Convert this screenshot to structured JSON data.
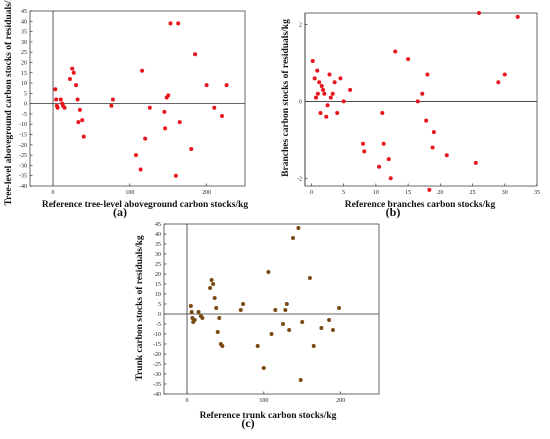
{
  "chart_data": [
    {
      "type": "scatter",
      "panel_label": "(a)",
      "xlabel": "Reference tree-level aboveground carbon stocks/kg",
      "ylabel": "Tree-level aboveground carbon stocks of residuals/kg",
      "xlim": [
        -30,
        250
      ],
      "ylim": [
        -40,
        45
      ],
      "xticks": [
        0,
        100,
        200
      ],
      "yticks": [
        45,
        40,
        35,
        30,
        25,
        20,
        15,
        10,
        5,
        0,
        -5,
        -10,
        -15,
        -20,
        -25,
        -30,
        -35,
        -40
      ],
      "point_color": "#e8141c",
      "points": [
        [
          3,
          7
        ],
        [
          4,
          2
        ],
        [
          5,
          -1
        ],
        [
          6,
          -2
        ],
        [
          10,
          2
        ],
        [
          12,
          0
        ],
        [
          13,
          -1
        ],
        [
          15,
          -2
        ],
        [
          22,
          12
        ],
        [
          25,
          17
        ],
        [
          27,
          15
        ],
        [
          30,
          9
        ],
        [
          32,
          2
        ],
        [
          33,
          -9
        ],
        [
          35,
          -3
        ],
        [
          38,
          -8
        ],
        [
          40,
          -16
        ],
        [
          76,
          -1
        ],
        [
          78,
          2
        ],
        [
          108,
          -25
        ],
        [
          114,
          -32
        ],
        [
          116,
          16
        ],
        [
          120,
          -17
        ],
        [
          126,
          -2
        ],
        [
          145,
          -4
        ],
        [
          146,
          -12
        ],
        [
          148,
          3
        ],
        [
          150,
          4
        ],
        [
          153,
          39
        ],
        [
          160,
          -35
        ],
        [
          163,
          39
        ],
        [
          165,
          -9
        ],
        [
          180,
          -22
        ],
        [
          185,
          24
        ],
        [
          200,
          9
        ],
        [
          210,
          -2
        ],
        [
          220,
          -6
        ],
        [
          226,
          9
        ]
      ]
    },
    {
      "type": "scatter",
      "panel_label": "(b)",
      "xlabel": "Reference branches carbon stocks/kg",
      "ylabel": "Branches carbon stocks of residuals/kg",
      "xlim": [
        -1,
        35
      ],
      "ylim": [
        -2.2,
        2.3
      ],
      "xticks": [
        0,
        5,
        10,
        15,
        20,
        25,
        30,
        35
      ],
      "yticks": [
        2,
        0,
        -2
      ],
      "ytick_labels": [
        "2",
        "0",
        "-2"
      ],
      "point_color": "#e8141c",
      "points": [
        [
          0.2,
          1.05
        ],
        [
          0.5,
          0.6
        ],
        [
          0.7,
          0.1
        ],
        [
          0.9,
          0.8
        ],
        [
          1.0,
          0.2
        ],
        [
          1.2,
          0.5
        ],
        [
          1.4,
          -0.3
        ],
        [
          1.6,
          0.4
        ],
        [
          1.8,
          0.3
        ],
        [
          2.0,
          0.2
        ],
        [
          2.3,
          -0.4
        ],
        [
          2.5,
          -0.1
        ],
        [
          2.8,
          0.7
        ],
        [
          3.0,
          0.1
        ],
        [
          3.3,
          0.2
        ],
        [
          3.6,
          0.5
        ],
        [
          4.0,
          -0.3
        ],
        [
          4.5,
          0.6
        ],
        [
          5.0,
          0.0
        ],
        [
          6.0,
          0.3
        ],
        [
          8.0,
          -1.1
        ],
        [
          8.2,
          -1.3
        ],
        [
          10.5,
          -1.7
        ],
        [
          11.0,
          -0.3
        ],
        [
          11.2,
          -1.1
        ],
        [
          12.0,
          -1.5
        ],
        [
          12.3,
          -2.0
        ],
        [
          13.0,
          1.3
        ],
        [
          15.0,
          1.1
        ],
        [
          16.5,
          0.0
        ],
        [
          17.2,
          0.2
        ],
        [
          17.8,
          -0.5
        ],
        [
          18.0,
          0.7
        ],
        [
          18.3,
          -2.3
        ],
        [
          18.8,
          -1.2
        ],
        [
          19.0,
          -0.8
        ],
        [
          21.0,
          -1.4
        ],
        [
          25.5,
          -1.6
        ],
        [
          26.0,
          2.3
        ],
        [
          29.0,
          0.5
        ],
        [
          30.0,
          0.7
        ],
        [
          32.0,
          2.2
        ]
      ]
    },
    {
      "type": "scatter",
      "panel_label": "(c)",
      "xlabel": "Reference trunk carbon stocks/kg",
      "ylabel": "Trunk carbon stocks of residuals/kg",
      "xlim": [
        -30,
        250
      ],
      "ylim": [
        -40,
        45
      ],
      "xticks": [
        0,
        100,
        200
      ],
      "yticks": [
        45,
        40,
        35,
        30,
        25,
        20,
        15,
        10,
        5,
        0,
        -5,
        -10,
        -15,
        -20,
        -25,
        -30,
        -35,
        -40
      ],
      "point_color": "#7a4a12",
      "points": [
        [
          5,
          4
        ],
        [
          6,
          1
        ],
        [
          7,
          -2
        ],
        [
          8,
          -4
        ],
        [
          10,
          -3
        ],
        [
          15,
          1
        ],
        [
          18,
          -1
        ],
        [
          20,
          -2
        ],
        [
          30,
          13
        ],
        [
          32,
          17
        ],
        [
          34,
          15
        ],
        [
          36,
          8
        ],
        [
          38,
          3
        ],
        [
          40,
          -9
        ],
        [
          42,
          -2
        ],
        [
          44,
          -15
        ],
        [
          46,
          -16
        ],
        [
          70,
          2
        ],
        [
          73,
          5
        ],
        [
          92,
          -16
        ],
        [
          100,
          -27
        ],
        [
          106,
          21
        ],
        [
          110,
          -10
        ],
        [
          115,
          2
        ],
        [
          125,
          -5
        ],
        [
          128,
          2
        ],
        [
          130,
          5
        ],
        [
          133,
          -8
        ],
        [
          138,
          38
        ],
        [
          145,
          43
        ],
        [
          148,
          -33
        ],
        [
          150,
          -4
        ],
        [
          160,
          18
        ],
        [
          165,
          -16
        ],
        [
          175,
          -7
        ],
        [
          185,
          -3
        ],
        [
          190,
          -8
        ],
        [
          198,
          3
        ]
      ]
    }
  ]
}
